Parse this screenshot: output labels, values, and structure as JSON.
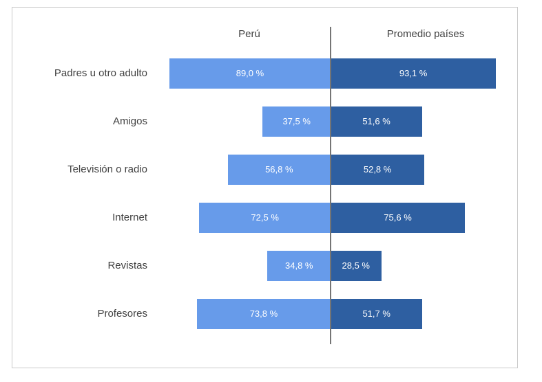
{
  "header": {
    "left": "Perú",
    "right": "Promedio países"
  },
  "colors": {
    "peru_bar": "#679bea",
    "promedio_bar": "#2e5fa1",
    "divider": "#757575",
    "panel_border": "#c9c9c9",
    "category_text": "#404040",
    "value_text": "#ffffff"
  },
  "chart_data": {
    "type": "bar",
    "variant": "diverging-horizontal-butterfly",
    "title": "",
    "xlabel": "",
    "ylabel": "",
    "xlim": [
      0,
      100
    ],
    "grid": false,
    "legend_position": "column-headers-top",
    "value_format": "comma-decimal percent",
    "categories": [
      "Padres u otro adulto",
      "Amigos",
      "Televisión o radio",
      "Internet",
      "Revistas",
      "Profesores"
    ],
    "series": [
      {
        "name": "Perú",
        "side": "left",
        "values": [
          89.0,
          37.5,
          56.8,
          72.5,
          34.8,
          73.8
        ],
        "labels": [
          "89,0 %",
          "37,5 %",
          "56,8 %",
          "72,5 %",
          "34,8 %",
          "73,8 %"
        ]
      },
      {
        "name": "Promedio países",
        "side": "right",
        "values": [
          93.1,
          51.6,
          52.8,
          75.6,
          28.5,
          51.7
        ],
        "labels": [
          "93,1 %",
          "51,6 %",
          "52,8 %",
          "75,6 %",
          "28,5 %",
          "51,7 %"
        ]
      }
    ]
  }
}
